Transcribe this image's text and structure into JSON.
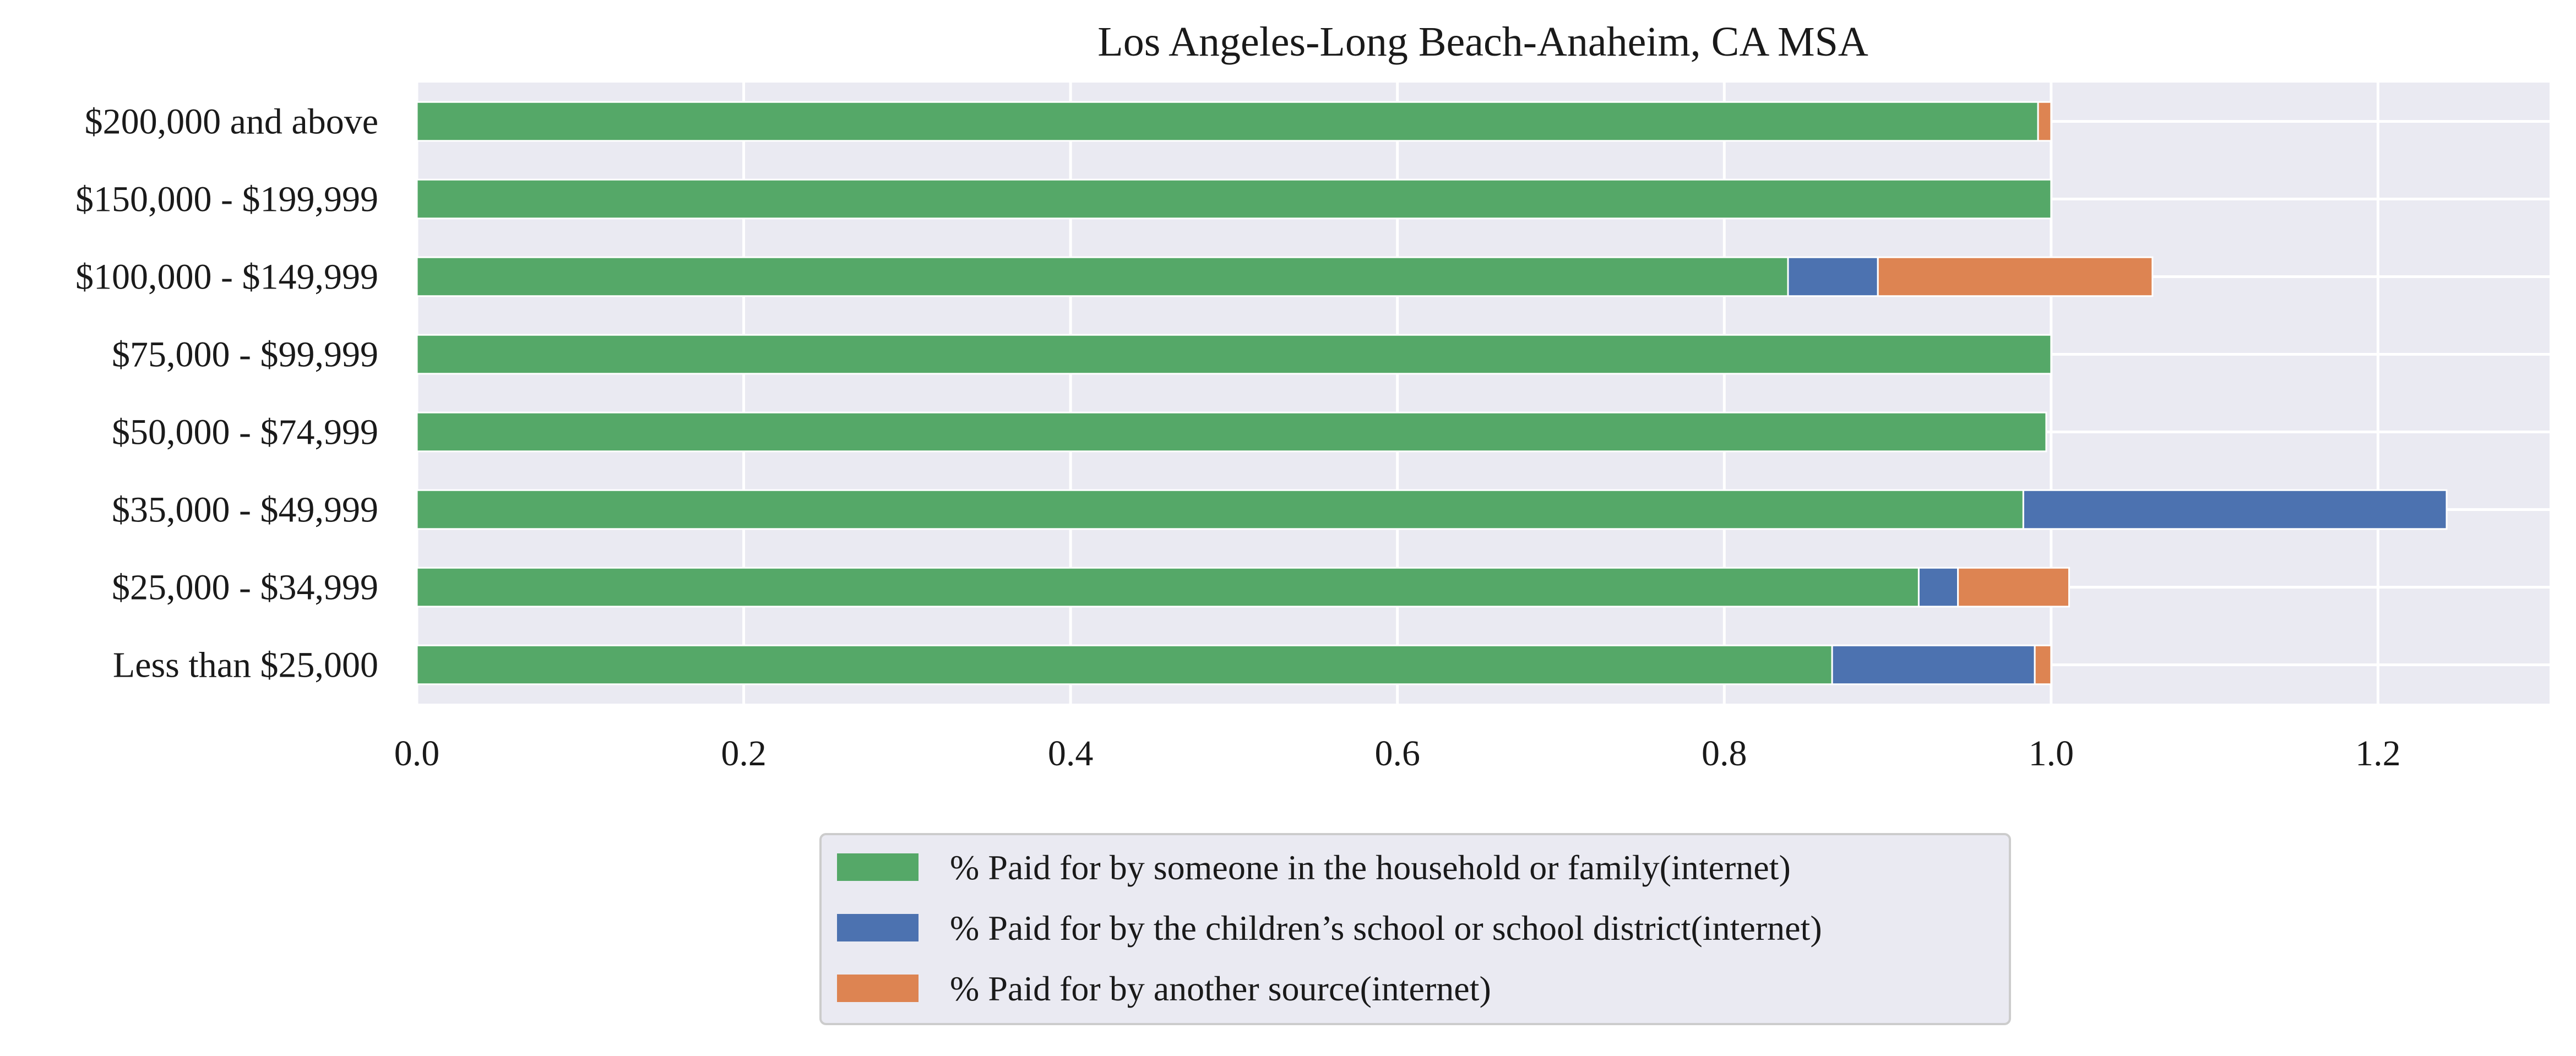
{
  "chart_data": {
    "type": "bar",
    "orientation": "horizontal",
    "stacked": true,
    "title": "Los Angeles-Long Beach-Anaheim, CA MSA",
    "xlabel": "",
    "ylabel": "",
    "categories": [
      "Less than $25,000",
      "$25,000 - $34,999",
      "$35,000 - $49,999",
      "$50,000 - $74,999",
      "$75,000 - $99,999",
      "$100,000 - $149,999",
      "$150,000 - $199,999",
      "$200,000 and above"
    ],
    "series": [
      {
        "name": "% Paid for by someone in the household or family(internet)",
        "color": "#55a868",
        "values": [
          0.866,
          0.919,
          0.983,
          0.997,
          1.0,
          0.839,
          1.0,
          0.992
        ]
      },
      {
        "name": "% Paid for by the children’s school or school district(internet)",
        "color": "#4c72b0",
        "values": [
          0.124,
          0.024,
          0.259,
          0.0,
          0.0,
          0.055,
          0.0,
          0.0
        ]
      },
      {
        "name": "% Paid for by another source(internet)",
        "color": "#dd8452",
        "values": [
          0.01,
          0.068,
          0.0,
          0.0,
          0.0,
          0.168,
          0.0,
          0.008
        ]
      }
    ],
    "xlim": [
      0.0,
      1.305
    ],
    "xticks": [
      0.0,
      0.2,
      0.4,
      0.6,
      0.8,
      1.0,
      1.2
    ],
    "xtick_labels": [
      "0.0",
      "0.2",
      "0.4",
      "0.6",
      "0.8",
      "1.0",
      "1.2"
    ],
    "grid": true,
    "legend_position": "bottom-center",
    "background_color": "#eaeaf2"
  }
}
